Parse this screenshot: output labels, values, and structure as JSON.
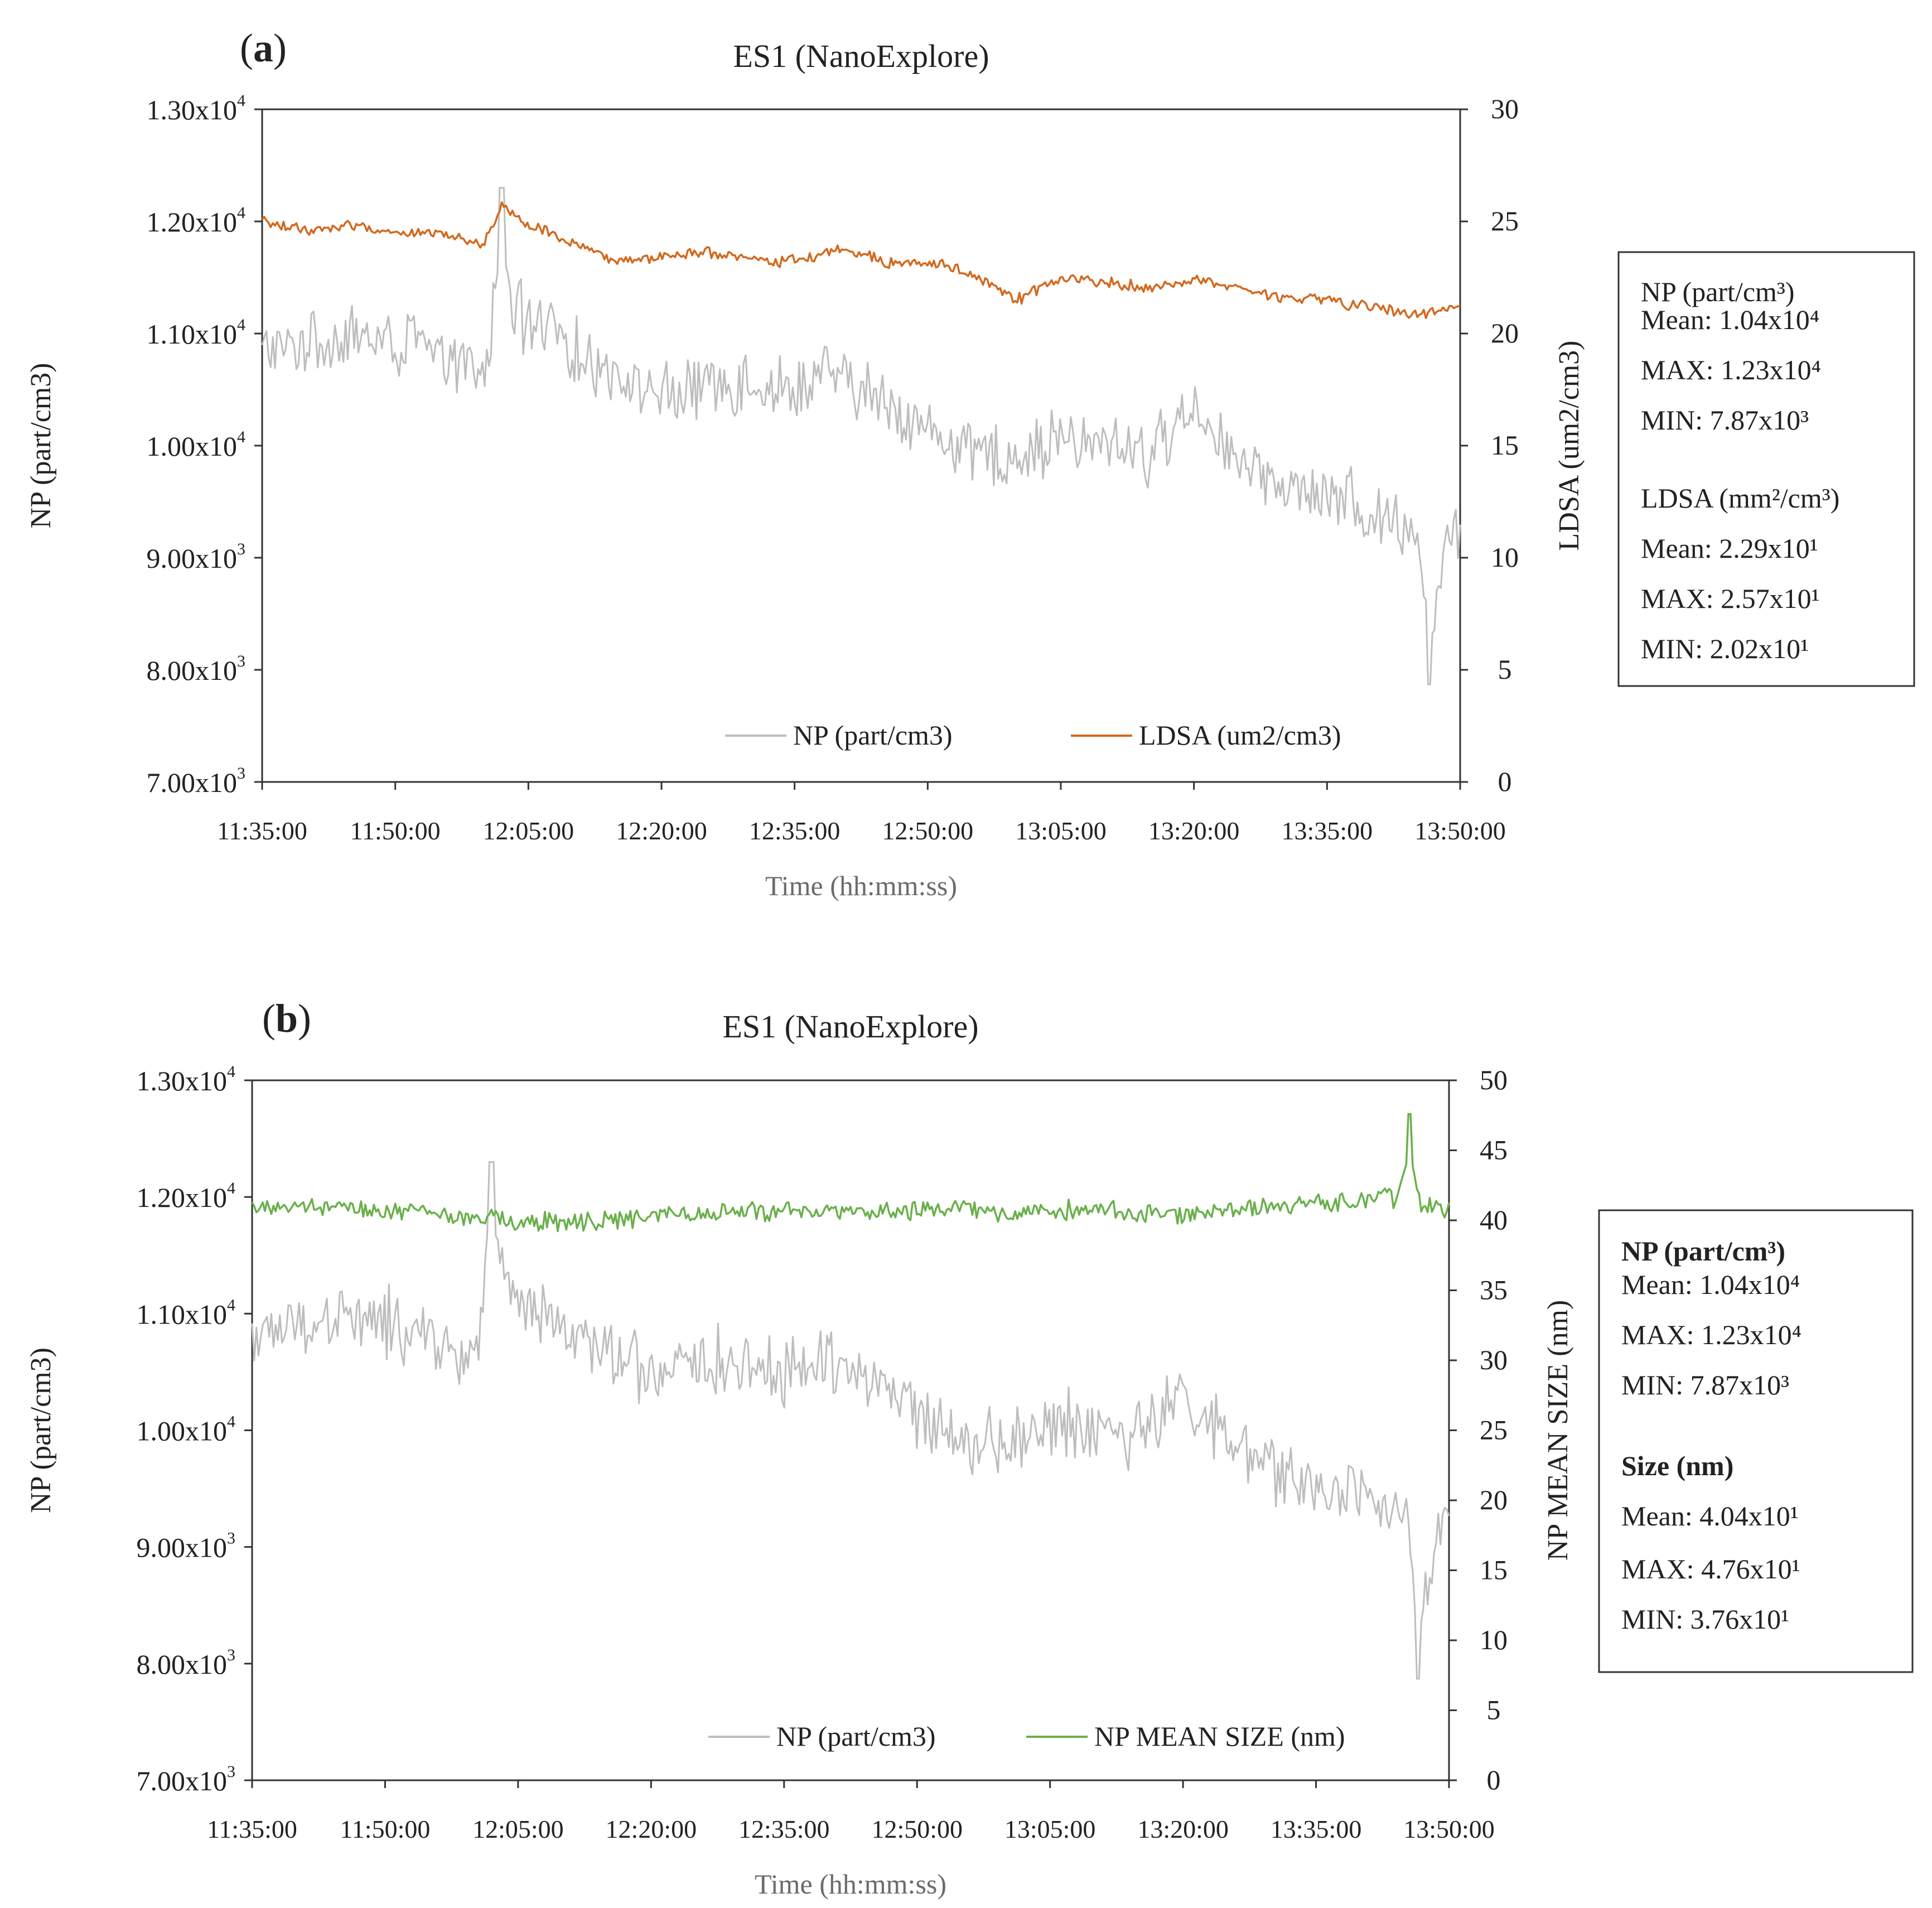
{
  "figure": {
    "panels": [
      {
        "id": "a",
        "label": "(a)",
        "label_letter": "a",
        "stats": {
          "np_heading": "NP (part/cm³)",
          "np_mean": "Mean: 1.04x10⁴",
          "np_max": "MAX: 1.23x10⁴",
          "np_min": "MIN: 7.87x10³",
          "second_heading": "LDSA (mm²/cm³)",
          "second_mean": "Mean: 2.29x10¹",
          "second_max": "MAX: 2.57x10¹",
          "second_min": "MIN: 2.02x10¹",
          "bold_headings": false
        }
      },
      {
        "id": "b",
        "label": "(b)",
        "label_letter": "b",
        "stats": {
          "np_heading": "NP (part/cm³)",
          "np_mean": "Mean: 1.04x10⁴",
          "np_max": "MAX: 1.23x10⁴",
          "np_min": "MIN: 7.87x10³",
          "second_heading": "Size (nm)",
          "second_mean": "Mean: 4.04x10¹",
          "second_max": "MAX: 4.76x10¹",
          "second_min": "MIN: 3.76x10¹",
          "bold_headings": true
        }
      }
    ]
  },
  "chart_data": [
    {
      "type": "line",
      "panel": "a",
      "title": "ES1 (NanoExplore)",
      "xlabel": "Time (hh:mm:ss)",
      "ylabel": "NP (part/cm3)",
      "y2label": "LDSA (um2/cm3)",
      "x_ticks": [
        "11:35:00",
        "11:50:00",
        "12:05:00",
        "12:20:00",
        "12:35:00",
        "12:50:00",
        "13:05:00",
        "13:20:00",
        "13:35:00",
        "13:50:00"
      ],
      "x_range_minutes": [
        0,
        135
      ],
      "ylim": [
        7000,
        13000
      ],
      "y_ticks": [
        {
          "value": 13000,
          "mant": "1.30x10",
          "exp": "4"
        },
        {
          "value": 12000,
          "mant": "1.20x10",
          "exp": "4"
        },
        {
          "value": 11000,
          "mant": "1.10x10",
          "exp": "4"
        },
        {
          "value": 10000,
          "mant": "1.00x10",
          "exp": "4"
        },
        {
          "value": 9000,
          "mant": "9.00x10",
          "exp": "3"
        },
        {
          "value": 8000,
          "mant": "8.00x10",
          "exp": "3"
        },
        {
          "value": 7000,
          "mant": "7.00x10",
          "exp": "3"
        }
      ],
      "y2lim": [
        0,
        30
      ],
      "y2_ticks": [
        "30",
        "25",
        "20",
        "15",
        "10",
        "5",
        "0"
      ],
      "legend_position": "bottom-center",
      "series": [
        {
          "name": "NP  (part/cm3)",
          "axis": "left",
          "color": "#bdbdbd",
          "anchors_minutes": [
            0,
            5,
            10,
            15,
            20,
            25,
            27,
            30,
            35,
            40,
            45,
            50,
            55,
            60,
            65,
            70,
            75,
            80,
            85,
            90,
            95,
            100,
            105,
            110,
            115,
            120,
            125,
            130,
            132,
            135
          ],
          "anchors_values": [
            10800,
            10900,
            10950,
            10900,
            10800,
            10600,
            11500,
            11050,
            10850,
            10650,
            10450,
            10550,
            10600,
            10500,
            10650,
            10400,
            10150,
            9950,
            9900,
            10050,
            10000,
            9950,
            10350,
            9850,
            9650,
            9550,
            9400,
            9300,
            8700,
            9300
          ],
          "amplitude": 420,
          "spikes": [
            {
              "minute": 27,
              "value": 12300
            },
            {
              "minute": 131.5,
              "value": 7870
            }
          ]
        },
        {
          "name": "LDSA (um2/cm3)",
          "axis": "right",
          "color": "#d2691e",
          "anchors_minutes": [
            0,
            5,
            10,
            15,
            20,
            25,
            27,
            30,
            35,
            40,
            45,
            50,
            55,
            60,
            65,
            68,
            70,
            75,
            80,
            85,
            90,
            95,
            100,
            105,
            110,
            115,
            120,
            125,
            130,
            135
          ],
          "anchors_values": [
            25.0,
            24.6,
            24.8,
            24.5,
            24.5,
            24.0,
            25.7,
            24.9,
            24.0,
            23.2,
            23.4,
            23.6,
            23.3,
            23.2,
            23.8,
            23.6,
            23.2,
            23.2,
            22.6,
            21.5,
            22.5,
            22.3,
            22.0,
            22.4,
            22.0,
            21.6,
            21.5,
            21.2,
            20.8,
            21.3
          ],
          "amplitude": 0.35,
          "spikes": []
        }
      ]
    },
    {
      "type": "line",
      "panel": "b",
      "title": "ES1 (NanoExplore)",
      "xlabel": "Time (hh:mm:ss)",
      "ylabel": "NP (part/cm3)",
      "y2label": "NP MEAN SIZE (nm)",
      "x_ticks": [
        "11:35:00",
        "11:50:00",
        "12:05:00",
        "12:20:00",
        "12:35:00",
        "12:50:00",
        "13:05:00",
        "13:20:00",
        "13:35:00",
        "13:50:00"
      ],
      "x_range_minutes": [
        0,
        135
      ],
      "ylim": [
        7000,
        13000
      ],
      "y_ticks": [
        {
          "value": 13000,
          "mant": "1.30x10",
          "exp": "4"
        },
        {
          "value": 12000,
          "mant": "1.20x10",
          "exp": "4"
        },
        {
          "value": 11000,
          "mant": "1.10x10",
          "exp": "4"
        },
        {
          "value": 10000,
          "mant": "1.00x10",
          "exp": "4"
        },
        {
          "value": 9000,
          "mant": "9.00x10",
          "exp": "3"
        },
        {
          "value": 8000,
          "mant": "8.00x10",
          "exp": "3"
        },
        {
          "value": 7000,
          "mant": "7.00x10",
          "exp": "3"
        }
      ],
      "y2lim": [
        0,
        50
      ],
      "y2_ticks": [
        "50",
        "45",
        "40",
        "35",
        "30",
        "25",
        "20",
        "15",
        "10",
        "5",
        "0"
      ],
      "legend_position": "bottom-center",
      "series": [
        {
          "name": "NP  (part/cm3)",
          "axis": "left",
          "color": "#bdbdbd",
          "anchors_minutes": [
            0,
            5,
            10,
            15,
            20,
            25,
            27,
            30,
            35,
            40,
            45,
            50,
            55,
            60,
            65,
            70,
            75,
            80,
            85,
            90,
            95,
            100,
            105,
            110,
            115,
            120,
            125,
            130,
            132,
            135
          ],
          "anchors_values": [
            10800,
            10900,
            10950,
            10900,
            10800,
            10600,
            11500,
            11050,
            10850,
            10650,
            10450,
            10550,
            10600,
            10500,
            10650,
            10400,
            10150,
            9950,
            9900,
            10050,
            10000,
            9950,
            10350,
            9850,
            9650,
            9550,
            9400,
            9300,
            8700,
            9300
          ],
          "amplitude": 420,
          "spikes": [
            {
              "minute": 27,
              "value": 12300
            },
            {
              "minute": 131.5,
              "value": 7870
            }
          ]
        },
        {
          "name": "NP MEAN SIZE (nm)",
          "axis": "right",
          "color": "#6ab04c",
          "anchors_minutes": [
            0,
            10,
            20,
            25,
            27,
            30,
            40,
            45,
            50,
            60,
            65,
            70,
            80,
            85,
            90,
            100,
            105,
            110,
            120,
            125,
            130,
            135
          ],
          "anchors_values": [
            41.0,
            40.8,
            40.6,
            39.8,
            40.2,
            39.8,
            40.0,
            40.2,
            40.6,
            40.5,
            40.8,
            40.6,
            40.8,
            40.4,
            40.7,
            40.6,
            40.4,
            40.8,
            41.2,
            41.4,
            41.6,
            40.8
          ],
          "amplitude": 1.0,
          "spikes": [
            {
              "minute": 130.5,
              "value": 47.6
            }
          ]
        }
      ]
    }
  ]
}
